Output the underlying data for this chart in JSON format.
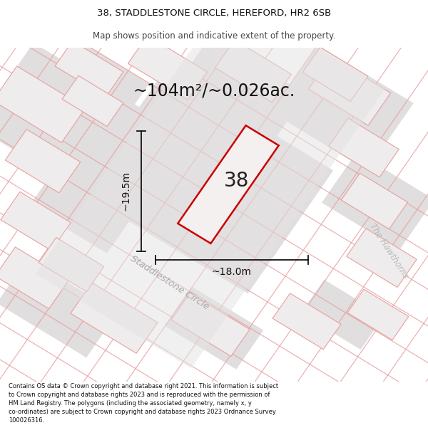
{
  "title_line1": "38, STADDLESTONE CIRCLE, HEREFORD, HR2 6SB",
  "title_line2": "Map shows position and indicative extent of the property.",
  "area_text": "~104m²/~0.026ac.",
  "label_number": "38",
  "dim_vertical": "~19.5m",
  "dim_horizontal": "~18.0m",
  "street_name1": "Staddlestone Circle",
  "street_name2": "The Hawthorns",
  "footer_text": "Contains OS data © Crown copyright and database right 2021. This information is subject to Crown copyright and database rights 2023 and is reproduced with the permission of HM Land Registry. The polygons (including the associated geometry, namely x, y co-ordinates) are subject to Crown copyright and database rights 2023 Ordnance Survey 100026316.",
  "map_bg": "#ebebeb",
  "plot_fill": "#e8e4e4",
  "road_line_color": "#e8a0a0",
  "prop_edge_color": "#cc0000",
  "prop_fill": "#f5f0f0",
  "dim_color": "#111111",
  "street_color": "#aaaaaa",
  "title_color": "#111111",
  "footer_color": "#111111"
}
